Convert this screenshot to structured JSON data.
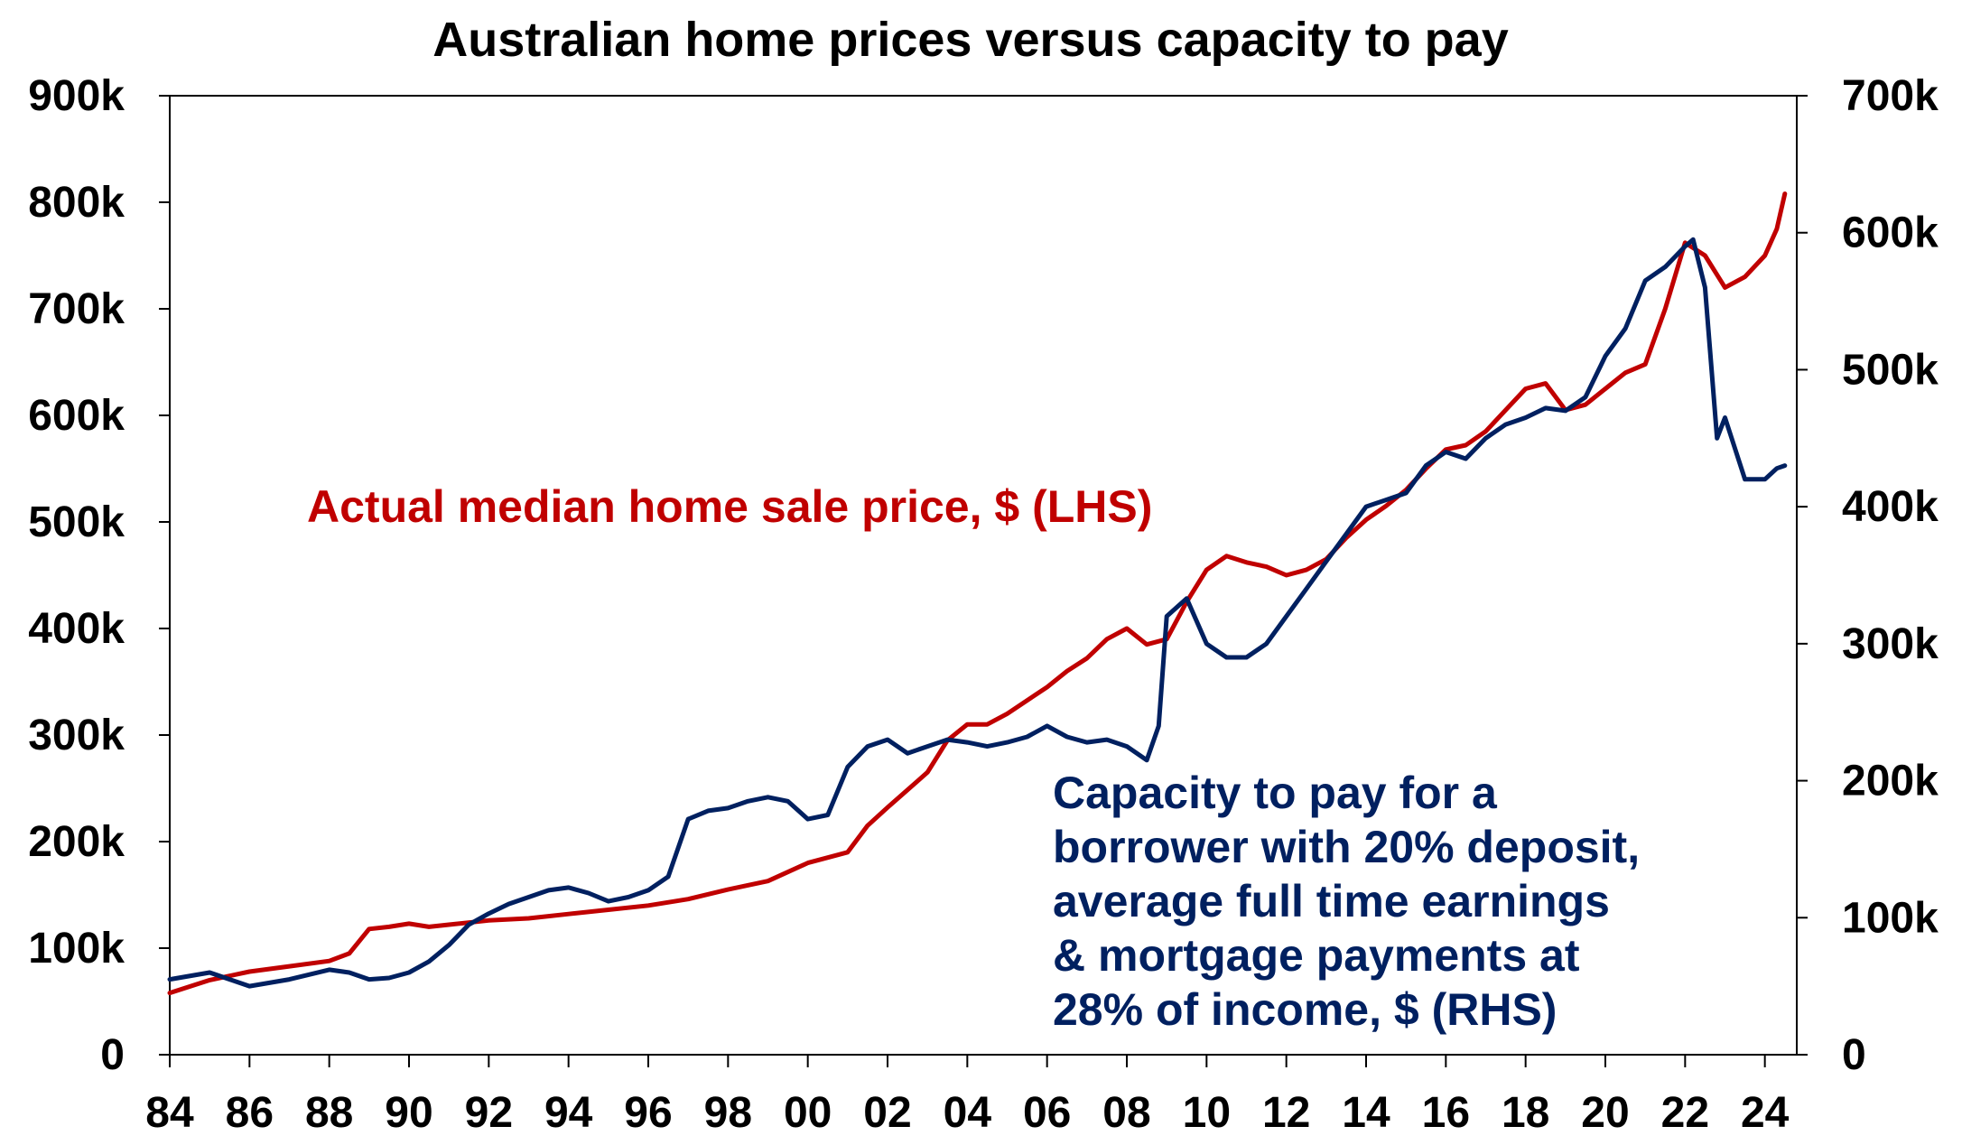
{
  "chart_data": {
    "type": "line",
    "title": "Australian home prices versus capacity to pay",
    "x_axis": {
      "range": [
        1984,
        2024.8
      ],
      "ticks": [
        1984,
        1986,
        1988,
        1990,
        1992,
        1994,
        1996,
        1998,
        2000,
        2002,
        2004,
        2006,
        2008,
        2010,
        2012,
        2014,
        2016,
        2018,
        2020,
        2022,
        2024
      ],
      "tick_labels": [
        "84",
        "86",
        "88",
        "90",
        "92",
        "94",
        "96",
        "98",
        "00",
        "02",
        "04",
        "06",
        "08",
        "10",
        "12",
        "14",
        "16",
        "18",
        "20",
        "22",
        "24"
      ]
    },
    "y_left": {
      "range": [
        0,
        900000
      ],
      "ticks": [
        0,
        100000,
        200000,
        300000,
        400000,
        500000,
        600000,
        700000,
        800000,
        900000
      ],
      "tick_labels": [
        "0",
        "100k",
        "200k",
        "300k",
        "400k",
        "500k",
        "600k",
        "700k",
        "800k",
        "900k"
      ]
    },
    "y_right": {
      "range": [
        0,
        700000
      ],
      "ticks": [
        0,
        100000,
        200000,
        300000,
        400000,
        500000,
        600000,
        700000
      ],
      "tick_labels": [
        "0",
        "100k",
        "200k",
        "300k",
        "400k",
        "500k",
        "600k",
        "700k"
      ]
    },
    "grid": false,
    "series": [
      {
        "name": "Actual median home sale price, $ (LHS)",
        "axis": "left",
        "color": "#c00000",
        "x": [
          1984.0,
          1985.0,
          1986.0,
          1987.0,
          1988.0,
          1988.5,
          1989.0,
          1989.5,
          1990.0,
          1990.5,
          1991.0,
          1992.0,
          1993.0,
          1994.0,
          1995.0,
          1996.0,
          1997.0,
          1998.0,
          1999.0,
          2000.0,
          2000.5,
          2001.0,
          2001.5,
          2002.0,
          2003.0,
          2003.5,
          2004.0,
          2004.5,
          2005.0,
          2006.0,
          2006.5,
          2007.0,
          2007.5,
          2008.0,
          2008.5,
          2009.0,
          2009.5,
          2010.0,
          2010.5,
          2011.0,
          2011.5,
          2012.0,
          2012.5,
          2013.0,
          2013.5,
          2014.0,
          2014.5,
          2015.0,
          2015.5,
          2016.0,
          2016.5,
          2017.0,
          2017.5,
          2018.0,
          2018.5,
          2019.0,
          2019.5,
          2020.0,
          2020.5,
          2021.0,
          2021.5,
          2022.0,
          2022.5,
          2023.0,
          2023.5,
          2024.0,
          2024.3,
          2024.5
        ],
        "y": [
          58000,
          70000,
          78000,
          83000,
          88000,
          95000,
          118000,
          120000,
          123000,
          120000,
          122000,
          126000,
          128000,
          132000,
          136000,
          140000,
          146000,
          155000,
          163000,
          180000,
          185000,
          190000,
          215000,
          232000,
          265000,
          295000,
          310000,
          310000,
          320000,
          345000,
          360000,
          372000,
          390000,
          400000,
          385000,
          390000,
          425000,
          455000,
          468000,
          462000,
          458000,
          450000,
          455000,
          465000,
          485000,
          502000,
          515000,
          530000,
          550000,
          568000,
          572000,
          585000,
          605000,
          625000,
          630000,
          605000,
          610000,
          625000,
          640000,
          648000,
          700000,
          762000,
          750000,
          720000,
          730000,
          750000,
          775000,
          808000
        ]
      },
      {
        "name": "Capacity to pay for a borrower with 20% deposit, average full time earnings & mortgage payments at 28% of income, $ (RHS)",
        "axis": "right",
        "color": "#002060",
        "x": [
          1984.0,
          1985.0,
          1986.0,
          1987.0,
          1988.0,
          1988.5,
          1989.0,
          1989.5,
          1990.0,
          1990.5,
          1991.0,
          1991.5,
          1992.0,
          1992.5,
          1993.0,
          1993.5,
          1994.0,
          1994.5,
          1995.0,
          1995.5,
          1996.0,
          1996.5,
          1997.0,
          1997.5,
          1998.0,
          1998.5,
          1999.0,
          1999.5,
          2000.0,
          2000.5,
          2001.0,
          2001.5,
          2002.0,
          2002.5,
          2003.0,
          2003.5,
          2004.0,
          2004.5,
          2005.0,
          2005.5,
          2006.0,
          2006.5,
          2007.0,
          2007.5,
          2008.0,
          2008.5,
          2008.8,
          2009.0,
          2009.5,
          2010.0,
          2010.5,
          2011.0,
          2011.5,
          2012.0,
          2012.5,
          2013.0,
          2013.5,
          2014.0,
          2014.5,
          2015.0,
          2015.5,
          2016.0,
          2016.5,
          2017.0,
          2017.5,
          2018.0,
          2018.5,
          2019.0,
          2019.5,
          2020.0,
          2020.5,
          2021.0,
          2021.5,
          2022.0,
          2022.2,
          2022.5,
          2022.8,
          2023.0,
          2023.5,
          2024.0,
          2024.3,
          2024.5
        ],
        "y": [
          55000,
          60000,
          50000,
          55000,
          62000,
          60000,
          55000,
          56000,
          60000,
          68000,
          80000,
          95000,
          103000,
          110000,
          115000,
          120000,
          122000,
          118000,
          112000,
          115000,
          120000,
          130000,
          172000,
          178000,
          180000,
          185000,
          188000,
          185000,
          172000,
          175000,
          210000,
          225000,
          230000,
          220000,
          225000,
          230000,
          228000,
          225000,
          228000,
          232000,
          240000,
          232000,
          228000,
          230000,
          225000,
          215000,
          240000,
          320000,
          333000,
          300000,
          290000,
          290000,
          300000,
          320000,
          340000,
          360000,
          380000,
          400000,
          405000,
          410000,
          430000,
          440000,
          435000,
          450000,
          460000,
          465000,
          472000,
          470000,
          480000,
          510000,
          530000,
          565000,
          575000,
          590000,
          595000,
          560000,
          450000,
          465000,
          420000,
          420000,
          428000,
          430000
        ]
      }
    ],
    "annotations": [
      {
        "series": 0,
        "color": "#c00000",
        "lines": [
          "Actual median home sale price, $ (LHS)"
        ]
      },
      {
        "series": 1,
        "color": "#002060",
        "lines": [
          "Capacity to pay for a",
          "borrower with 20% deposit,",
          "average full time earnings",
          "& mortgage payments at",
          "28% of income, $ (RHS)"
        ]
      }
    ]
  }
}
